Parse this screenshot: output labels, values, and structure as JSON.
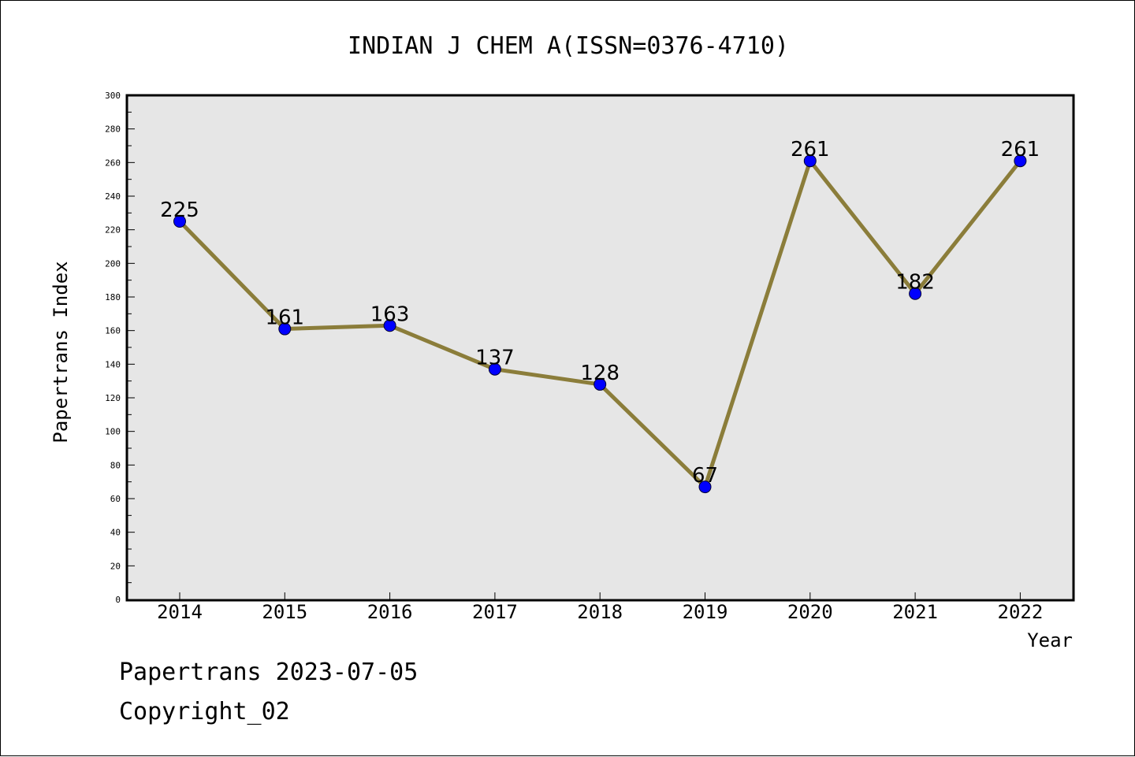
{
  "chart_data": {
    "type": "line",
    "title": "INDIAN J CHEM A(ISSN=0376-4710)",
    "xlabel": "Year",
    "ylabel": "Papertrans Index",
    "categories": [
      "2014",
      "2015",
      "2016",
      "2017",
      "2018",
      "2019",
      "2020",
      "2021",
      "2022"
    ],
    "values": [
      225,
      161,
      163,
      137,
      128,
      67,
      261,
      182,
      261
    ],
    "data_labels": [
      "225",
      "161",
      "163",
      "137",
      "128",
      "67",
      "261",
      "182",
      "261"
    ],
    "ylim": [
      0,
      300
    ],
    "yticks": [
      "0",
      "20",
      "40",
      "60",
      "80",
      "100",
      "120",
      "140",
      "160",
      "180",
      "200",
      "220",
      "240",
      "260",
      "280",
      "300"
    ],
    "grid": false,
    "line_color": "#8b7d3a",
    "marker_color": "#0000ff",
    "plot_background": "#e6e6e6"
  },
  "footer": {
    "line1": "Papertrans 2023-07-05",
    "line2": "Copyright_02"
  }
}
